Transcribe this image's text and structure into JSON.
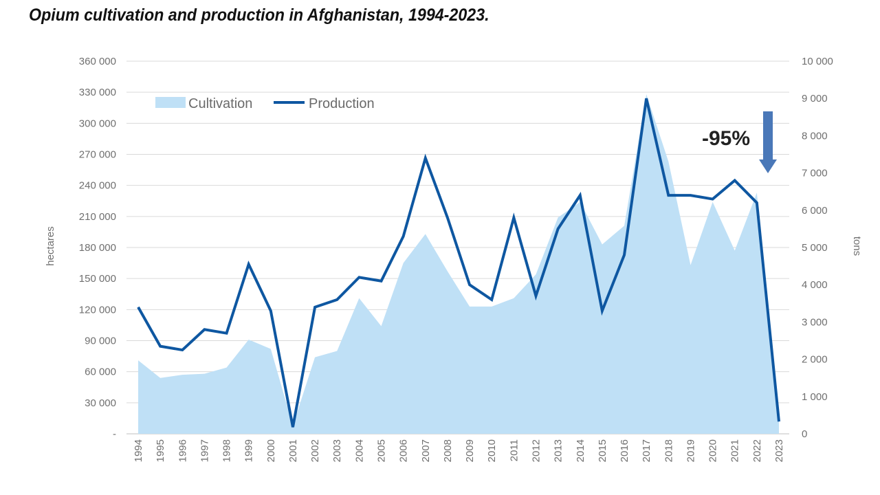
{
  "title": "Opium cultivation and production in Afghanistan, 1994-2023.",
  "colors": {
    "cultivation": "#bfe0f6",
    "production": "#0e57a1",
    "arrow": "#4a78b8",
    "grid": "#d9d9d9"
  },
  "chart_data": {
    "type": "area",
    "x": [
      "1994",
      "1995",
      "1996",
      "1997",
      "1998",
      "1999",
      "2000",
      "2001",
      "2002",
      "2003",
      "2004",
      "2005",
      "2006",
      "2007",
      "2008",
      "2009",
      "2010",
      "2011",
      "2012",
      "2013",
      "2014",
      "2015",
      "2016",
      "2017",
      "2018",
      "2019",
      "2020",
      "2021",
      "2022",
      "2023"
    ],
    "series": [
      {
        "name": "Cultivation",
        "type": "area",
        "axis": "left",
        "values": [
          71000,
          54000,
          57000,
          58000,
          64000,
          91000,
          82000,
          8000,
          74000,
          80000,
          131000,
          104000,
          165000,
          193000,
          157000,
          123000,
          123000,
          131000,
          154000,
          209000,
          224000,
          183000,
          201000,
          328000,
          263000,
          163000,
          224000,
          177000,
          233000,
          11000
        ]
      },
      {
        "name": "Production",
        "type": "line",
        "axis": "right",
        "values": [
          3400,
          2350,
          2250,
          2800,
          2700,
          4550,
          3300,
          180,
          3400,
          3600,
          4200,
          4100,
          5300,
          7400,
          5800,
          4000,
          3600,
          5800,
          3700,
          5500,
          6400,
          3300,
          4800,
          9000,
          6400,
          6400,
          6300,
          6800,
          6200,
          330
        ]
      }
    ],
    "y_left": {
      "label": "hectares",
      "ylim": [
        0,
        360000
      ],
      "ticks": [
        "-",
        "30 000",
        "60 000",
        "90 000",
        "120 000",
        "150 000",
        "180 000",
        "210 000",
        "240 000",
        "270 000",
        "300 000",
        "330 000",
        "360 000"
      ]
    },
    "y_right": {
      "label": "tons",
      "ylim": [
        0,
        10000
      ],
      "ticks": [
        "0",
        "1 000",
        "2 000",
        "3 000",
        "4 000",
        "5 000",
        "6 000",
        "7 000",
        "8 000",
        "9 000",
        "10 000"
      ]
    },
    "grid": true,
    "legend": {
      "position": "top-left",
      "entries": [
        "Cultivation",
        "Production"
      ]
    },
    "annotation": {
      "text": "-95%",
      "arrow": "down"
    }
  }
}
